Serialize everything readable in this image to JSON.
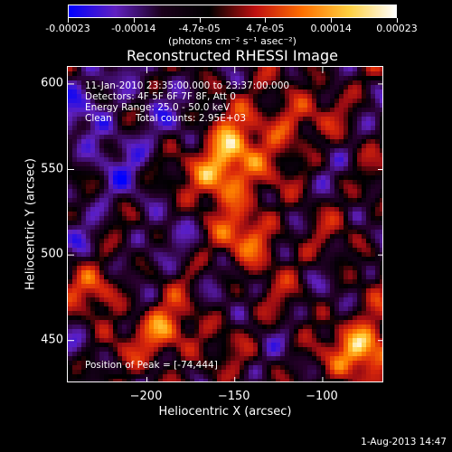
{
  "colorbar": {
    "tick_labels": [
      "-0.00023",
      "-0.00014",
      "-4.7e-05",
      "4.7e-05",
      "0.00014",
      "0.00023"
    ],
    "units": "(photons cm⁻² s⁻¹ asec⁻²)",
    "range": [
      -0.00023,
      0.00023
    ],
    "colors": [
      "#0000ff",
      "#6020c0",
      "#1a001a",
      "#000000",
      "#c01010",
      "#ff7000",
      "#ffd040",
      "#ffffff"
    ]
  },
  "chart_data": {
    "type": "heatmap",
    "title": "Reconstructed RHESSI Image",
    "xlabel": "Heliocentric X (arcsec)",
    "ylabel": "Heliocentric Y (arcsec)",
    "xlim": [
      -245,
      -65
    ],
    "ylim": [
      425,
      610
    ],
    "x_ticks": [
      -200,
      -150,
      -100
    ],
    "y_ticks": [
      450,
      500,
      550,
      600
    ],
    "x_tick_labels": [
      "−200",
      "−150",
      "−100"
    ],
    "y_tick_labels": [
      "450",
      "500",
      "550",
      "600"
    ],
    "peak": {
      "x": -74,
      "y": 444
    },
    "bright_sources": [
      {
        "x": -74,
        "y": 444,
        "intensity": 1.0
      },
      {
        "x": -190,
        "y": 455,
        "intensity": 0.8
      },
      {
        "x": -158,
        "y": 545,
        "intensity": 0.85
      },
      {
        "x": -150,
        "y": 563,
        "intensity": 0.7
      },
      {
        "x": -225,
        "y": 480,
        "intensity": 0.7
      },
      {
        "x": -140,
        "y": 510,
        "intensity": 0.6
      },
      {
        "x": -122,
        "y": 580,
        "intensity": 0.55
      }
    ]
  },
  "annotations": {
    "time_range": "11-Jan-2010 23:35:00.000 to 23:37:00.000",
    "detectors": "Detectors: 4F 5F 6F 7F 8F, Att 0",
    "energy_range": "Energy Range: 25.0 - 50.0 keV",
    "method": "Clean",
    "total_counts": "Total counts: 2.95E+03",
    "peak_position": "Position of Peak = [-74,444]"
  },
  "timestamp": "1-Aug-2013 14:47"
}
